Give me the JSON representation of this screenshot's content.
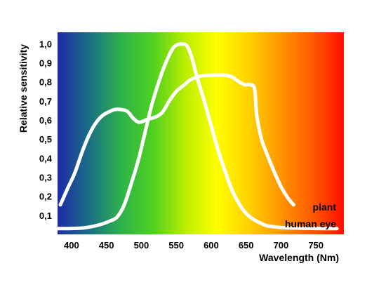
{
  "chart_data": {
    "type": "line",
    "title": "",
    "xlabel": "Wavelength (Nm)",
    "ylabel": "Relative sensitivity",
    "xlim": [
      380,
      790
    ],
    "ylim": [
      0.0,
      1.06
    ],
    "xticks": [
      400,
      450,
      500,
      550,
      600,
      650,
      700,
      750
    ],
    "yticks": [
      0.1,
      0.2,
      0.3,
      0.4,
      0.5,
      0.6,
      0.7,
      0.8,
      0.9,
      1.0
    ],
    "ytick_labels": [
      "0,1",
      "0,2",
      "0,3",
      "0,4",
      "0,5",
      "0,6",
      "0,7",
      "0,8",
      "0,9",
      "1,0"
    ],
    "grid": false,
    "background": "visible spectrum gradient (blue to red)",
    "spectrum_colors": [
      "#1e2aa6",
      "#1a6f85",
      "#2fb24a",
      "#4fd020",
      "#b9ee00",
      "#ffff00",
      "#ffd200",
      "#ff9600",
      "#ff5a00",
      "#ff0f00"
    ],
    "line_color": "#ffffff",
    "series": [
      {
        "name": "plant",
        "x": [
          384,
          395,
          405,
          415,
          425,
          435,
          445,
          455,
          462,
          470,
          480,
          488,
          495,
          500,
          510,
          520,
          530,
          540,
          550,
          560,
          570,
          580,
          590,
          600,
          610,
          620,
          630,
          640,
          648,
          655,
          662,
          665,
          672,
          680,
          690,
          700,
          710,
          718
        ],
        "y": [
          0.155,
          0.245,
          0.325,
          0.43,
          0.52,
          0.585,
          0.625,
          0.645,
          0.655,
          0.655,
          0.645,
          0.61,
          0.59,
          0.59,
          0.605,
          0.615,
          0.64,
          0.7,
          0.75,
          0.78,
          0.81,
          0.825,
          0.833,
          0.835,
          0.835,
          0.835,
          0.825,
          0.8,
          0.785,
          0.785,
          0.765,
          0.63,
          0.5,
          0.42,
          0.33,
          0.25,
          0.19,
          0.155
        ]
      },
      {
        "name": "human eye",
        "x": [
          380,
          400,
          420,
          440,
          455,
          465,
          475,
          485,
          495,
          505,
          515,
          525,
          535,
          545,
          552,
          558,
          565,
          572,
          580,
          590,
          600,
          610,
          620,
          630,
          640,
          650,
          660,
          670,
          680,
          690,
          700,
          720,
          750,
          780
        ],
        "y": [
          0.03,
          0.031,
          0.035,
          0.05,
          0.07,
          0.09,
          0.15,
          0.26,
          0.38,
          0.53,
          0.68,
          0.8,
          0.9,
          0.975,
          0.995,
          0.998,
          0.99,
          0.93,
          0.82,
          0.7,
          0.57,
          0.44,
          0.33,
          0.23,
          0.16,
          0.11,
          0.08,
          0.06,
          0.045,
          0.04,
          0.036,
          0.033,
          0.031,
          0.03
        ]
      }
    ],
    "annotations": [
      {
        "text": "plant",
        "series": "plant"
      },
      {
        "text": "human eye",
        "series": "human eye"
      }
    ]
  }
}
